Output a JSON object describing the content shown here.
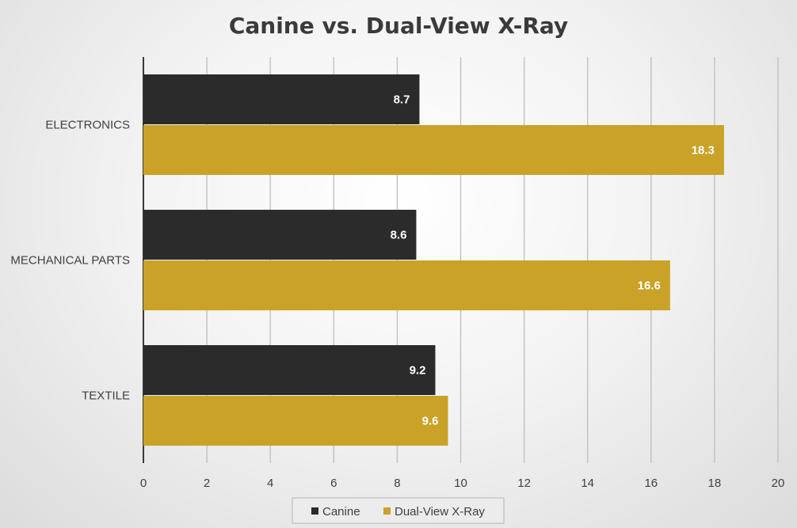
{
  "chart_data": {
    "type": "bar",
    "orientation": "horizontal",
    "title": "Canine vs. Dual-View X-Ray",
    "xlabel": "",
    "ylabel": "",
    "categories": [
      "ELECTRONICS",
      "MECHANICAL PARTS",
      "TEXTILE"
    ],
    "series": [
      {
        "name": "Canine",
        "values": [
          8.7,
          8.6,
          9.2
        ],
        "color": "#2b2b2b"
      },
      {
        "name": "Dual-View X-Ray",
        "values": [
          18.3,
          16.6,
          9.6
        ],
        "color": "#c9a227"
      }
    ],
    "xlim": [
      0,
      20
    ],
    "xticks": [
      "0",
      "2",
      "4",
      "6",
      "8",
      "10",
      "12",
      "14",
      "16",
      "18",
      "20"
    ],
    "data_labels": true,
    "grid": "vertical",
    "legend_position": "bottom"
  }
}
